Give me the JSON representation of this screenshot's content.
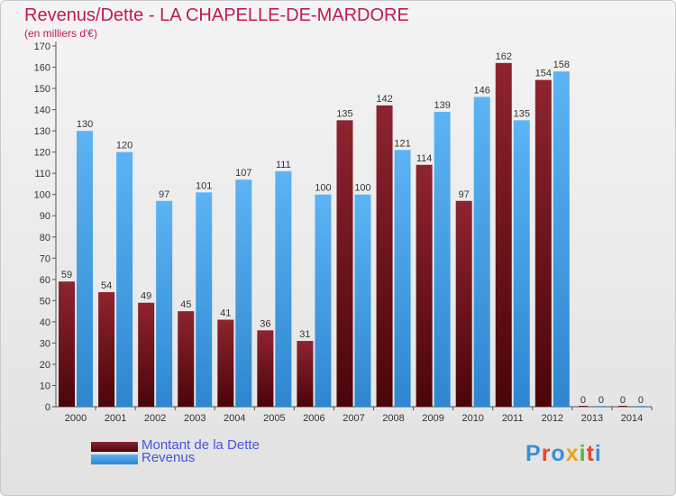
{
  "chart_data": {
    "type": "bar",
    "title": "Revenus/Dette - LA CHAPELLE-DE-MARDORE",
    "subtitle": "(en milliers d'€)",
    "categories": [
      "2000",
      "2001",
      "2002",
      "2003",
      "2004",
      "2005",
      "2006",
      "2007",
      "2008",
      "2009",
      "2010",
      "2011",
      "2012",
      "2013",
      "2014"
    ],
    "series": [
      {
        "name": "Montant de la Dette",
        "values": [
          59,
          54,
          49,
          45,
          41,
          36,
          31,
          135,
          142,
          114,
          97,
          162,
          154,
          0,
          0
        ],
        "color": "#7a1520"
      },
      {
        "name": "Revenus",
        "values": [
          130,
          120,
          97,
          101,
          107,
          111,
          100,
          100,
          121,
          139,
          146,
          135,
          158,
          0,
          0
        ],
        "color": "#4aa6ee"
      }
    ],
    "ylim": [
      0,
      170
    ],
    "yticks": [
      0,
      10,
      20,
      30,
      40,
      50,
      60,
      70,
      80,
      90,
      100,
      110,
      120,
      130,
      140,
      150,
      160,
      170
    ],
    "grid": false,
    "legend_position": "bottom-left"
  },
  "logo": {
    "text": "Proxiti",
    "colors": [
      "#3a8fd6",
      "#e8462a",
      "#3a8fd6",
      "#f0a020",
      "#5ab43c",
      "#e8462a",
      "#3a8fd6"
    ]
  }
}
